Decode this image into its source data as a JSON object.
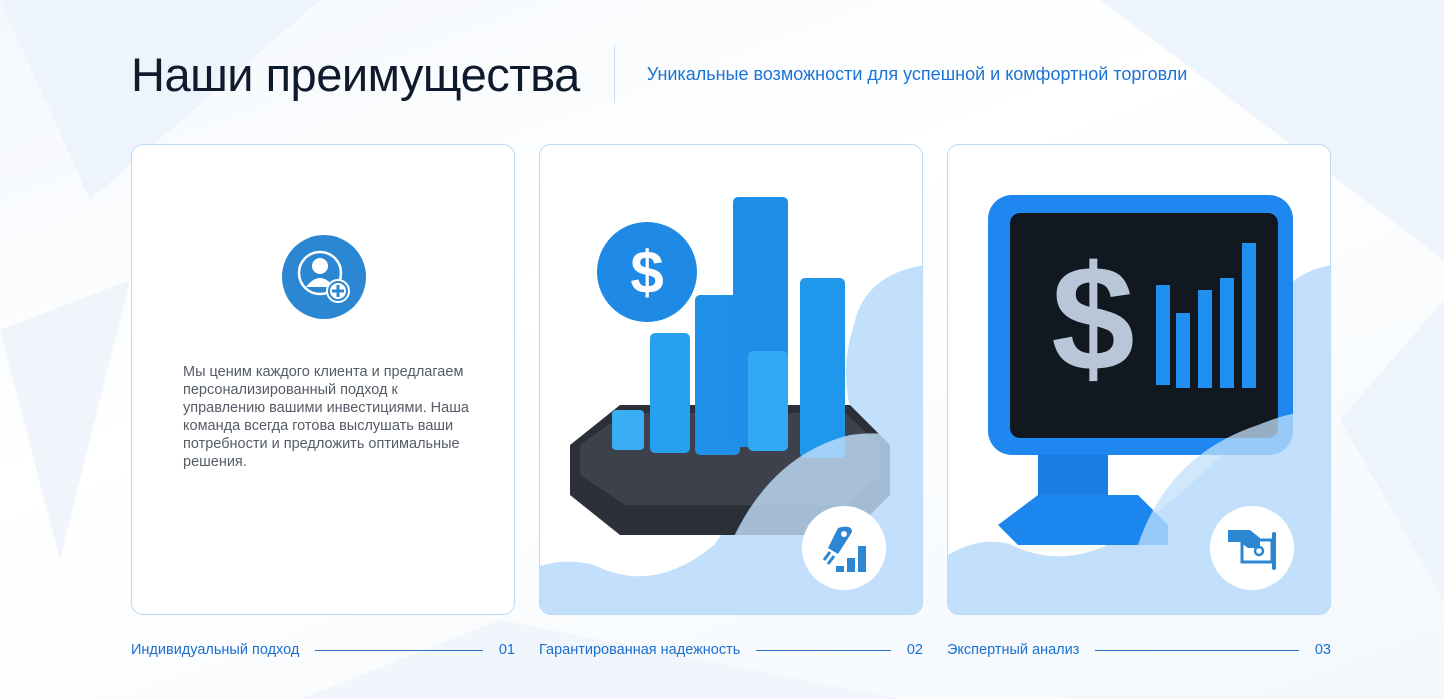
{
  "header": {
    "title": "Наши преимущества",
    "subtitle": "Уникальные возможности для успешной и комфортной торговли"
  },
  "colors": {
    "accent": "#1a73d6",
    "card_bg": "#c2e0fb",
    "icon_blue": "#2b87d1"
  },
  "cards": [
    {
      "label": "Индивидуальный подход",
      "number": "01",
      "icon": "user-plus-icon",
      "description": "Мы ценим каждого клиента и предлагаем персонализированный подход к управлению вашими инвестициями. Наша команда всегда готова выслушать ваши потребности и предложить оптимальные решения."
    },
    {
      "label": "Гарантированная надежность",
      "number": "02",
      "icon": "rocket-growth-icon",
      "illustration": "bar-chart-dollar-illustration"
    },
    {
      "label": "Экспертный анализ",
      "number": "03",
      "icon": "money-hand-icon",
      "illustration": "monitor-dollar-illustration"
    }
  ]
}
